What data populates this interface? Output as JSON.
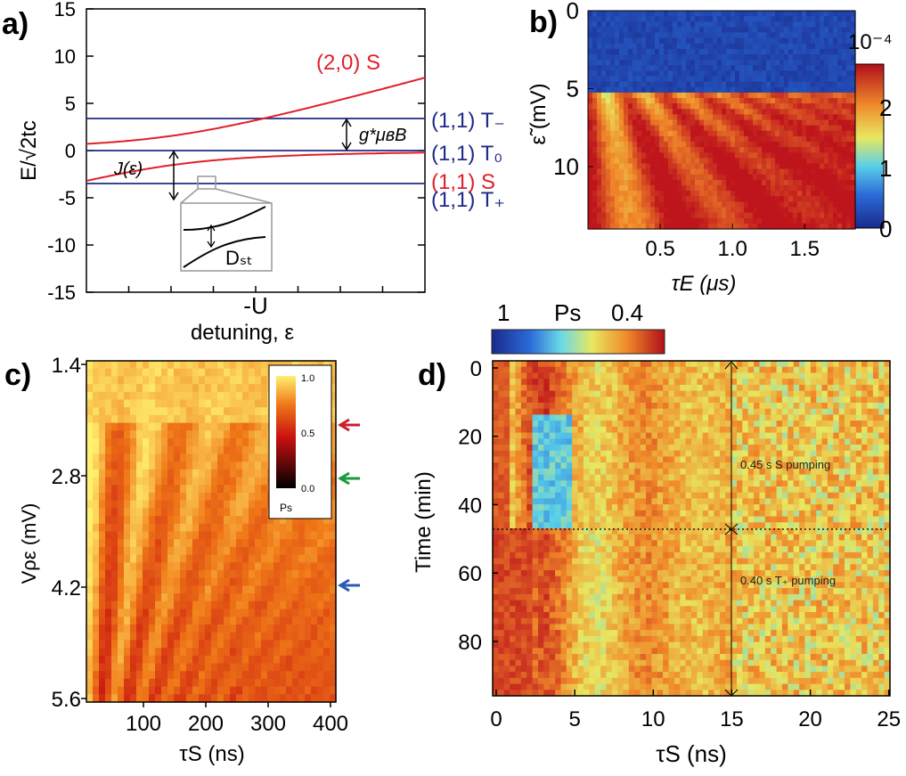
{
  "panels": {
    "a": {
      "label": "a)",
      "ylabel": "E/√2tᴄ",
      "xlabel": "detuning, ε",
      "xtick_label": "-U",
      "yticks": [
        "15",
        "10",
        "5",
        "0",
        "-5",
        "-10",
        "-15"
      ],
      "curve_label": "(2,0) S",
      "state_labels": [
        "(1,1) T₋",
        "(1,1) T₀",
        "(1,1) S",
        "(1,1) T₊"
      ],
      "j_label": "J(ε)",
      "gap_label": "g*μʙB",
      "dst_label": "Dₛₜ"
    },
    "b": {
      "label": "b)",
      "ylabel": "ε̃ (mV)",
      "xlabel": "τE (μs)",
      "yticks": [
        "0",
        "5",
        "10"
      ],
      "xticks": [
        "0.5",
        "1.0",
        "1.5"
      ],
      "colorbar_exp": "10⁻⁴",
      "colorbar_ticks": [
        "2",
        "1",
        "0"
      ]
    },
    "c": {
      "label": "c)",
      "ylabel": "Vρε (mV)",
      "xlabel": "τS (ns)",
      "yticks": [
        "1.4",
        "2.8",
        "4.2",
        "5.6"
      ],
      "xticks": [
        "100",
        "200",
        "300",
        "400"
      ],
      "cbar_ticks": [
        "1.0",
        "0.5",
        "0.0"
      ],
      "cbar_label": "Ps"
    },
    "d": {
      "label": "d)",
      "ylabel": "Time (min)",
      "xlabel": "τS (ns)",
      "yticks": [
        "0",
        "20",
        "40",
        "60",
        "80"
      ],
      "xticks": [
        "0",
        "5",
        "10",
        "15",
        "20",
        "25"
      ],
      "cbar_left": "1",
      "cbar_mid": "Ps",
      "cbar_right": "0.4",
      "annotation_top": "0.45 s S pumping",
      "annotation_bottom": "0.40 s T₊ pumping"
    }
  },
  "colors": {
    "red": "#e0202a",
    "blue": "#1f2a86",
    "arrow_red": "#c8202a",
    "arrow_green": "#1a9a3a",
    "arrow_blue": "#2a5ab8"
  },
  "chart_data": [
    {
      "type": "line",
      "title": "a) energy vs detuning",
      "xlabel": "detuning, ε",
      "ylabel": "E/√2tᴄ",
      "ylim": [
        -15,
        15
      ],
      "series": [
        {
          "name": "(2,0) S (upper branch)",
          "x": [
            -1,
            -0.5,
            0,
            0.5,
            1
          ],
          "values": [
            0.1,
            0.3,
            1.7,
            5.7,
            10
          ]
        },
        {
          "name": "(1,1) S (lower branch)",
          "x": [
            -1,
            -0.5,
            0,
            0.5,
            1
          ],
          "values": [
            -10.1,
            -4.3,
            -1.7,
            -0.7,
            -0.1
          ]
        },
        {
          "name": "(1,1) T-",
          "values": [
            3.4
          ]
        },
        {
          "name": "(1,1) T0",
          "values": [
            0
          ]
        },
        {
          "name": "(1,1) T+",
          "values": [
            -3.5
          ]
        }
      ]
    },
    {
      "type": "heatmap",
      "title": "b)",
      "xlabel": "τE (μs)",
      "ylabel": "ε̃ (mV)",
      "xlim": [
        0,
        1.85
      ],
      "ylim": [
        0,
        14
      ],
      "colorbar_range": [
        0,
        2.5
      ],
      "colorbar_unit": "10^-4"
    },
    {
      "type": "heatmap",
      "title": "c)",
      "xlabel": "τS (ns)",
      "ylabel": "Vρε (mV)",
      "xlim": [
        0,
        400
      ],
      "ylim": [
        1.4,
        5.6
      ],
      "colorbar_range": [
        0.0,
        1.0
      ],
      "arrows_at_mV": [
        2.0,
        3.0,
        4.2
      ]
    },
    {
      "type": "heatmap",
      "title": "d)",
      "xlabel": "τS (ns)",
      "ylabel": "Time (min)",
      "xlim": [
        0,
        25
      ],
      "ylim": [
        0,
        98
      ],
      "colorbar_range": [
        1,
        0.4
      ],
      "divider_time_min": 48
    }
  ]
}
